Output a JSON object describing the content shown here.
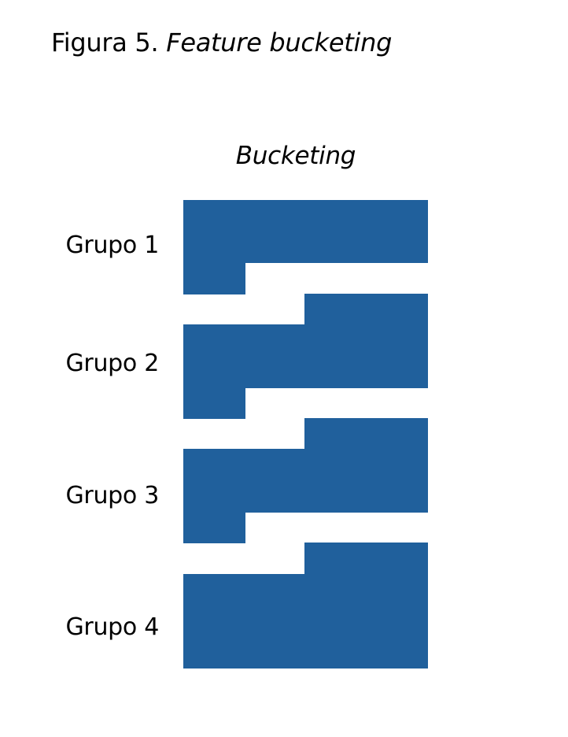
{
  "caption": {
    "prefix": "Figura 5.",
    "title": "Feature bucketing"
  },
  "diagram": {
    "heading": "Bucketing",
    "fill_color": "#20609c",
    "groups": [
      {
        "label": "Grupo 1"
      },
      {
        "label": "Grupo 2"
      },
      {
        "label": "Grupo 3"
      },
      {
        "label": "Grupo 4"
      }
    ]
  }
}
